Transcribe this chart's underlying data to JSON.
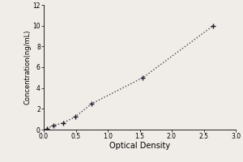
{
  "x": [
    0.052,
    0.148,
    0.298,
    0.498,
    0.752,
    1.55,
    2.65
  ],
  "y": [
    0.1,
    0.4,
    0.625,
    1.25,
    2.5,
    5.0,
    10.0
  ],
  "line_color": "#444444",
  "marker_color": "#1a1a2e",
  "xlabel": "Optical Density",
  "ylabel": "Concentration(ng/mL)",
  "xlim": [
    0,
    3
  ],
  "ylim": [
    0,
    12
  ],
  "xticks": [
    0,
    0.5,
    1,
    1.5,
    2,
    2.5,
    3
  ],
  "yticks": [
    0,
    2,
    4,
    6,
    8,
    10,
    12
  ],
  "background_color": "#f0ede8",
  "plot_bg": "#f0ede8"
}
